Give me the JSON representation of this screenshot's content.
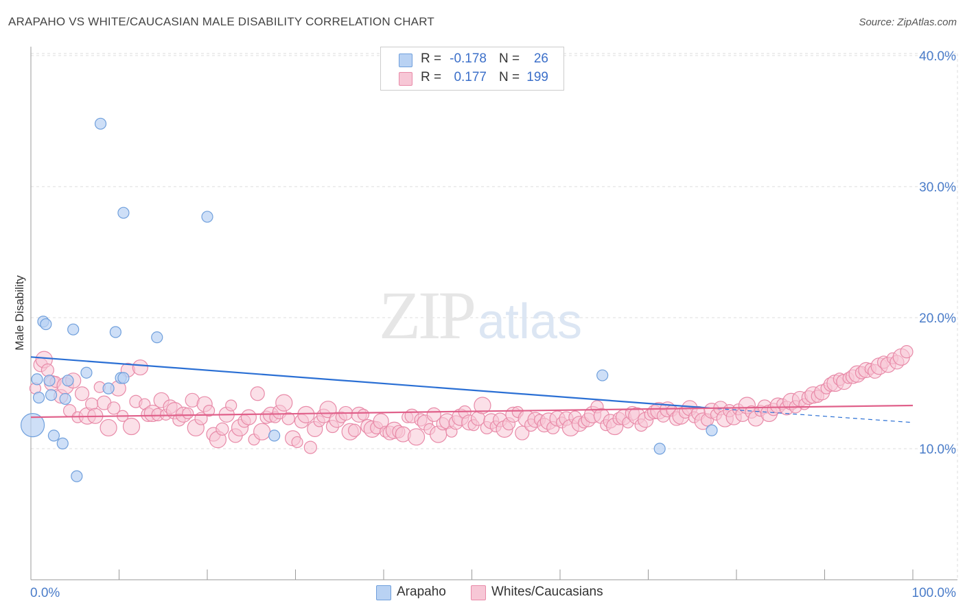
{
  "title": "ARAPAHO VS WHITE/CAUCASIAN MALE DISABILITY CORRELATION CHART",
  "source": "Source: ZipAtlas.com",
  "watermark": {
    "zip": "ZIP",
    "atlas": "atlas"
  },
  "colors": {
    "blue_fill": "#b9d2f3",
    "blue_stroke": "#6f9fdc",
    "blue_line": "#2a6fd4",
    "pink_fill": "#f7c7d6",
    "pink_stroke": "#e88aa8",
    "pink_line": "#e0608a",
    "axis_text": "#4a7cc9",
    "grid": "#dddddd"
  },
  "legend": {
    "rows": [
      {
        "r_label": "R =",
        "r_value": "-0.178",
        "n_label": "N =",
        "n_value": "26"
      },
      {
        "r_label": "R =",
        "r_value": "0.177",
        "n_label": "N =",
        "n_value": "199"
      }
    ]
  },
  "bottom_legend": {
    "arapaho": "Arapaho",
    "whites": "Whites/Caucasians"
  },
  "chart_data": {
    "type": "scatter",
    "title": "ARAPAHO VS WHITE/CAUCASIAN MALE DISABILITY CORRELATION CHART",
    "xlabel": "",
    "ylabel": "Male Disability",
    "xlim": [
      0,
      100
    ],
    "ylim": [
      0,
      42
    ],
    "x_tick_labels": [
      "0.0%",
      "100.0%"
    ],
    "y_ticks": [
      10,
      20,
      30,
      40
    ],
    "y_tick_labels": [
      "10.0%",
      "20.0%",
      "30.0%",
      "40.0%"
    ],
    "series": [
      {
        "name": "Arapaho",
        "r": -0.178,
        "n": 26,
        "trend": {
          "x": [
            0,
            77
          ],
          "y": [
            17.0,
            13.1
          ],
          "dash_to": [
            100,
            12.0
          ]
        },
        "points": [
          [
            0.2,
            11.8
          ],
          [
            0.7,
            15.3
          ],
          [
            0.9,
            13.9
          ],
          [
            1.4,
            19.7
          ],
          [
            1.7,
            19.5
          ],
          [
            2.1,
            15.2
          ],
          [
            2.3,
            14.1
          ],
          [
            2.6,
            11.0
          ],
          [
            3.6,
            10.4
          ],
          [
            3.9,
            13.8
          ],
          [
            4.2,
            15.2
          ],
          [
            4.8,
            19.1
          ],
          [
            5.2,
            7.9
          ],
          [
            6.3,
            15.8
          ],
          [
            7.9,
            34.8
          ],
          [
            8.8,
            14.6
          ],
          [
            9.6,
            18.9
          ],
          [
            10.2,
            15.4
          ],
          [
            10.5,
            15.4
          ],
          [
            10.5,
            28.0
          ],
          [
            14.3,
            18.5
          ],
          [
            20.0,
            27.7
          ],
          [
            27.6,
            11.0
          ],
          [
            64.8,
            15.6
          ],
          [
            71.3,
            10.0
          ],
          [
            77.2,
            11.4
          ]
        ]
      },
      {
        "name": "Whites/Caucasians",
        "r": 0.177,
        "n": 199,
        "trend": {
          "x": [
            0,
            100
          ],
          "y": [
            12.4,
            13.3
          ]
        },
        "points": [
          [
            0.5,
            14.6
          ],
          [
            1.1,
            16.4
          ],
          [
            1.5,
            16.8
          ],
          [
            1.9,
            16.0
          ],
          [
            2.4,
            15.0
          ],
          [
            2.8,
            15.1
          ],
          [
            3.4,
            14.0
          ],
          [
            3.9,
            14.8
          ],
          [
            4.4,
            12.9
          ],
          [
            4.8,
            15.2
          ],
          [
            5.3,
            12.4
          ],
          [
            5.8,
            14.2
          ],
          [
            6.4,
            12.5
          ],
          [
            6.9,
            13.4
          ],
          [
            7.3,
            12.5
          ],
          [
            7.8,
            14.7
          ],
          [
            8.3,
            13.5
          ],
          [
            8.8,
            11.6
          ],
          [
            9.4,
            13.1
          ],
          [
            9.9,
            14.6
          ],
          [
            10.4,
            12.5
          ],
          [
            11.0,
            16.0
          ],
          [
            11.4,
            11.7
          ],
          [
            11.9,
            13.6
          ],
          [
            12.4,
            16.2
          ],
          [
            12.9,
            13.4
          ],
          [
            13.3,
            12.6
          ],
          [
            13.8,
            12.7
          ],
          [
            14.4,
            12.6
          ],
          [
            14.8,
            13.7
          ],
          [
            15.3,
            12.6
          ],
          [
            15.8,
            13.2
          ],
          [
            16.3,
            12.9
          ],
          [
            16.8,
            12.2
          ],
          [
            17.3,
            12.6
          ],
          [
            17.8,
            12.7
          ],
          [
            18.3,
            13.7
          ],
          [
            18.7,
            11.6
          ],
          [
            19.3,
            12.3
          ],
          [
            19.7,
            13.4
          ],
          [
            20.2,
            12.9
          ],
          [
            20.7,
            11.1
          ],
          [
            21.2,
            10.7
          ],
          [
            21.7,
            11.5
          ],
          [
            22.2,
            12.6
          ],
          [
            22.7,
            13.3
          ],
          [
            23.2,
            11.0
          ],
          [
            23.7,
            11.6
          ],
          [
            24.2,
            12.1
          ],
          [
            24.7,
            12.4
          ],
          [
            25.3,
            10.7
          ],
          [
            25.7,
            14.2
          ],
          [
            26.2,
            11.3
          ],
          [
            26.7,
            12.4
          ],
          [
            27.2,
            12.6
          ],
          [
            27.7,
            12.4
          ],
          [
            28.2,
            12.8
          ],
          [
            28.7,
            13.5
          ],
          [
            29.2,
            12.3
          ],
          [
            29.7,
            10.8
          ],
          [
            30.2,
            10.5
          ],
          [
            30.7,
            12.1
          ],
          [
            31.2,
            12.6
          ],
          [
            31.7,
            10.1
          ],
          [
            32.2,
            11.5
          ],
          [
            32.7,
            12.1
          ],
          [
            33.2,
            12.5
          ],
          [
            33.7,
            13.0
          ],
          [
            34.2,
            11.7
          ],
          [
            34.7,
            12.2
          ],
          [
            35.2,
            12.4
          ],
          [
            35.7,
            12.7
          ],
          [
            36.2,
            11.3
          ],
          [
            36.7,
            11.4
          ],
          [
            37.2,
            12.6
          ],
          [
            37.7,
            12.6
          ],
          [
            38.2,
            11.7
          ],
          [
            38.7,
            11.5
          ],
          [
            39.2,
            11.6
          ],
          [
            39.7,
            12.1
          ],
          [
            40.2,
            11.3
          ],
          [
            40.7,
            11.2
          ],
          [
            41.2,
            11.4
          ],
          [
            41.7,
            11.3
          ],
          [
            42.2,
            11.1
          ],
          [
            42.7,
            12.4
          ],
          [
            43.2,
            12.5
          ],
          [
            43.7,
            10.9
          ],
          [
            44.2,
            12.2
          ],
          [
            44.7,
            12.0
          ],
          [
            45.2,
            11.5
          ],
          [
            45.7,
            12.6
          ],
          [
            46.2,
            11.1
          ],
          [
            46.7,
            11.9
          ],
          [
            47.2,
            12.1
          ],
          [
            47.7,
            11.3
          ],
          [
            48.2,
            12.0
          ],
          [
            48.7,
            12.4
          ],
          [
            49.2,
            12.8
          ],
          [
            49.7,
            12.0
          ],
          [
            50.2,
            11.8
          ],
          [
            50.7,
            12.3
          ],
          [
            51.2,
            13.3
          ],
          [
            51.7,
            11.6
          ],
          [
            52.2,
            12.1
          ],
          [
            52.7,
            11.7
          ],
          [
            53.2,
            12.2
          ],
          [
            53.7,
            11.5
          ],
          [
            54.2,
            11.9
          ],
          [
            54.7,
            12.6
          ],
          [
            55.2,
            12.8
          ],
          [
            55.7,
            11.2
          ],
          [
            56.2,
            12.3
          ],
          [
            56.7,
            11.8
          ],
          [
            57.2,
            12.2
          ],
          [
            57.7,
            12.2
          ],
          [
            58.2,
            11.8
          ],
          [
            58.7,
            12.1
          ],
          [
            59.2,
            11.6
          ],
          [
            59.7,
            12.3
          ],
          [
            60.2,
            12.0
          ],
          [
            60.7,
            12.3
          ],
          [
            61.2,
            11.6
          ],
          [
            61.7,
            12.4
          ],
          [
            62.2,
            11.9
          ],
          [
            62.7,
            12.0
          ],
          [
            63.2,
            12.2
          ],
          [
            63.7,
            12.6
          ],
          [
            64.2,
            13.2
          ],
          [
            64.7,
            12.5
          ],
          [
            65.2,
            11.8
          ],
          [
            65.7,
            12.1
          ],
          [
            66.2,
            11.7
          ],
          [
            66.7,
            12.3
          ],
          [
            67.2,
            12.4
          ],
          [
            67.7,
            12.0
          ],
          [
            68.2,
            12.7
          ],
          [
            68.7,
            12.5
          ],
          [
            69.2,
            11.8
          ],
          [
            69.7,
            12.2
          ],
          [
            70.2,
            12.6
          ],
          [
            70.7,
            12.8
          ],
          [
            71.2,
            12.9
          ],
          [
            71.7,
            12.5
          ],
          [
            72.2,
            13.0
          ],
          [
            72.7,
            12.9
          ],
          [
            73.2,
            12.3
          ],
          [
            73.7,
            12.5
          ],
          [
            74.2,
            12.8
          ],
          [
            74.7,
            13.1
          ],
          [
            75.2,
            12.4
          ],
          [
            75.7,
            12.7
          ],
          [
            76.2,
            12.1
          ],
          [
            76.7,
            12.2
          ],
          [
            77.2,
            12.9
          ],
          [
            77.7,
            12.6
          ],
          [
            78.2,
            13.1
          ],
          [
            78.7,
            12.3
          ],
          [
            79.2,
            12.9
          ],
          [
            79.7,
            12.4
          ],
          [
            80.2,
            13.0
          ],
          [
            80.7,
            12.6
          ],
          [
            81.2,
            13.3
          ],
          [
            81.7,
            12.8
          ],
          [
            82.2,
            12.3
          ],
          [
            82.7,
            12.9
          ],
          [
            83.2,
            13.2
          ],
          [
            83.7,
            12.7
          ],
          [
            84.2,
            13.0
          ],
          [
            84.7,
            13.3
          ],
          [
            85.2,
            13.4
          ],
          [
            85.7,
            13.1
          ],
          [
            86.2,
            13.6
          ],
          [
            86.7,
            13.2
          ],
          [
            87.2,
            13.8
          ],
          [
            87.7,
            13.4
          ],
          [
            88.2,
            13.9
          ],
          [
            88.7,
            14.1
          ],
          [
            89.2,
            14.0
          ],
          [
            89.7,
            14.3
          ],
          [
            90.2,
            14.6
          ],
          [
            90.7,
            14.9
          ],
          [
            91.2,
            15.0
          ],
          [
            91.7,
            15.3
          ],
          [
            92.2,
            15.1
          ],
          [
            92.7,
            15.4
          ],
          [
            93.2,
            15.5
          ],
          [
            93.7,
            15.7
          ],
          [
            94.2,
            15.8
          ],
          [
            94.7,
            16.0
          ],
          [
            95.2,
            16.1
          ],
          [
            95.7,
            15.9
          ],
          [
            96.2,
            16.3
          ],
          [
            96.7,
            16.6
          ],
          [
            97.2,
            16.4
          ],
          [
            97.7,
            16.9
          ],
          [
            98.2,
            16.6
          ],
          [
            98.7,
            17.0
          ],
          [
            99.3,
            17.4
          ]
        ]
      }
    ]
  }
}
